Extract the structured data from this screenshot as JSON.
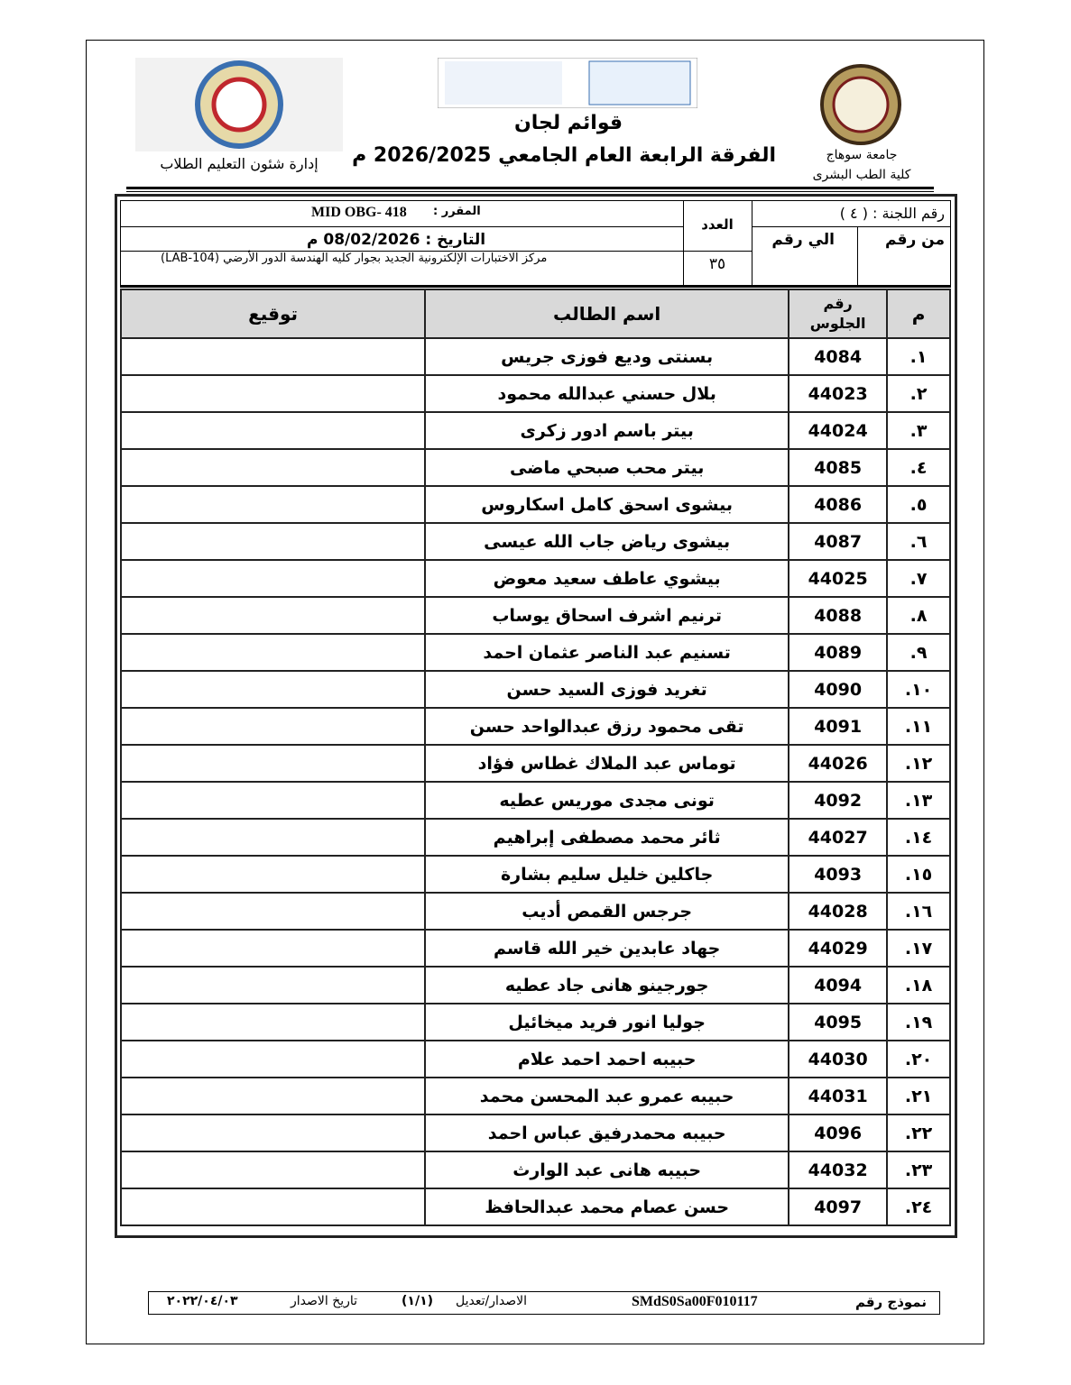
{
  "header": {
    "university": "جامعة سوهاج",
    "faculty": "كلية الطب البشرى",
    "title": "قوائم لجان",
    "subtitle": "الفرقة الرابعة العام الجامعي 2026/2025 م",
    "department": "إدارة شئون التعليم الطلاب"
  },
  "info": {
    "committee": "رقم اللجنة : ( ٤ )",
    "from_label": "من رقم",
    "to_label": "الي رقم",
    "count_label": "العدد",
    "count": "٣٥",
    "course_label": "المقرر :",
    "course": "MID OBG- 418",
    "date": "التاريخ : 08/02/2026 م",
    "location": "مركز الاختبارات الإلكترونية الجديد بجوار كليه الهندسة الدور الأرضي (LAB-104)"
  },
  "table": {
    "headers": [
      "م",
      "رقم الجلوس",
      "اسم الطالب",
      "توقيع"
    ],
    "rows": [
      [
        "١.",
        "4084",
        "بسنتى وديع فوزى جريس"
      ],
      [
        "٢.",
        "44023",
        "بلال حسني عبدالله محمود"
      ],
      [
        "٣.",
        "44024",
        "بيتر باسم ادور زكرى"
      ],
      [
        "٤.",
        "4085",
        "بيتر محب صبحي ماضى"
      ],
      [
        "٥.",
        "4086",
        "بيشوى اسحق كامل اسكاروس"
      ],
      [
        "٦.",
        "4087",
        "بيشوى رياض جاب الله عيسى"
      ],
      [
        "٧.",
        "44025",
        "بيشوي عاطف سعيد معوض"
      ],
      [
        "٨.",
        "4088",
        "ترنيم اشرف اسحاق يوساب"
      ],
      [
        "٩.",
        "4089",
        "تسنيم عبد الناصر عثمان احمد"
      ],
      [
        "١٠.",
        "4090",
        "تغريد فوزى السيد حسن"
      ],
      [
        "١١.",
        "4091",
        "تقى محمود رزق عبدالواحد حسن"
      ],
      [
        "١٢.",
        "44026",
        "توماس عبد الملاك غطاس فؤاد"
      ],
      [
        "١٣.",
        "4092",
        "تونى مجدى موريس عطيه"
      ],
      [
        "١٤.",
        "44027",
        "ثائر محمد مصطفى إبراهيم"
      ],
      [
        "١٥.",
        "4093",
        "جاكلين خليل سليم بشارة"
      ],
      [
        "١٦.",
        "44028",
        "جرجس القمص أديب"
      ],
      [
        "١٧.",
        "44029",
        "جهاد عابدين خير الله قاسم"
      ],
      [
        "١٨.",
        "4094",
        "جورجينو هانى جاد عطيه"
      ],
      [
        "١٩.",
        "4095",
        "جوليا انور فريد ميخائيل"
      ],
      [
        "٢٠.",
        "44030",
        "حبيبه احمد احمد علام"
      ],
      [
        "٢١.",
        "44031",
        "حبيبه عمرو عبد المحسن محمد"
      ],
      [
        "٢٢.",
        "4096",
        "حبيبه محمدرفيق عباس احمد"
      ],
      [
        "٢٣.",
        "44032",
        "حبيبه هانى عبد الوارث"
      ],
      [
        "٢٤.",
        "4097",
        "حسن عصام محمد عبدالحافظ"
      ]
    ]
  },
  "footer": {
    "form_label": "نموذج رقم",
    "form_number": "SMdS0Sa00F010117",
    "version_label": "الاصدار/تعديل",
    "version": "(١/١)",
    "date_label": "تاريخ الاصدار",
    "date": "٢٠٢٢/٠٤/٠٣"
  }
}
